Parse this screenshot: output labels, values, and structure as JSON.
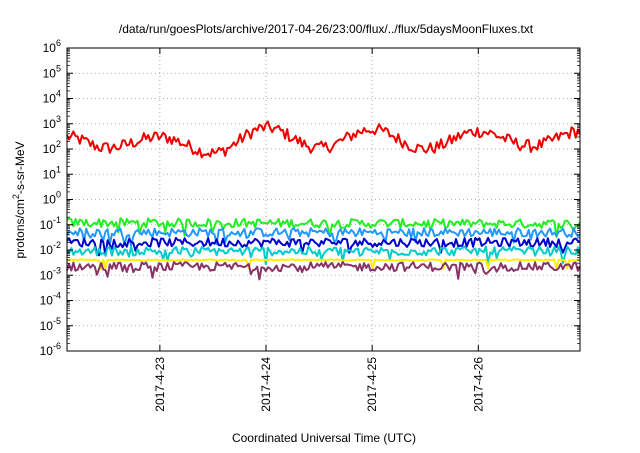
{
  "chart_data": {
    "type": "line",
    "title": "/data/run/goesPlots/archive/2017-04-26/23:00/flux/../flux/5daysMoonFluxes.txt",
    "xlabel": "Coordinated Universal Time (UTC)",
    "ylabel": {
      "base": "protons/cm",
      "sup": "2",
      "rest": "-s-sr-MeV"
    },
    "y_scale": "log",
    "ylim": [
      1e-06,
      1000000.0
    ],
    "xlim": [
      "2017-04-22 03:00",
      "2017-04-26 23:00"
    ],
    "grid": true,
    "legend": "none",
    "x_ticks": [
      "2017-4-23",
      "2017-4-24",
      "2017-4-25",
      "2017-4-26"
    ],
    "y_ticks": [
      {
        "base": "10",
        "exp": "-6"
      },
      {
        "base": "10",
        "exp": "-5"
      },
      {
        "base": "10",
        "exp": "-4"
      },
      {
        "base": "10",
        "exp": "-3"
      },
      {
        "base": "10",
        "exp": "-2"
      },
      {
        "base": "10",
        "exp": "-1"
      },
      {
        "base": "10",
        "exp": "0"
      },
      {
        "base": "10",
        "exp": "1"
      },
      {
        "base": "10",
        "exp": "2"
      },
      {
        "base": "10",
        "exp": "3"
      },
      {
        "base": "10",
        "exp": "4"
      },
      {
        "base": "10",
        "exp": "5"
      },
      {
        "base": "10",
        "exp": "6"
      }
    ],
    "series": [
      {
        "color": "#ee0000",
        "x": [
          "2017-04-22 03:00",
          "2017-04-22 12:00",
          "2017-04-23 00:00",
          "2017-04-23 12:00",
          "2017-04-24 00:00",
          "2017-04-24 12:00",
          "2017-04-25 00:00",
          "2017-04-25 12:00",
          "2017-04-26 00:00",
          "2017-04-26 12:00",
          "2017-04-26 23:00"
        ],
        "y": [
          300,
          110,
          300,
          70,
          700,
          110,
          600,
          100,
          500,
          130,
          500
        ]
      },
      {
        "color": "#22ee22",
        "x": [
          "2017-04-22 03:00",
          "2017-04-26 23:00"
        ],
        "y": [
          0.12,
          0.11
        ]
      },
      {
        "color": "#2299ff",
        "x": [
          "2017-04-22 03:00",
          "2017-04-26 23:00"
        ],
        "y": [
          0.05,
          0.05
        ]
      },
      {
        "color": "#0000cc",
        "x": [
          "2017-04-22 03:00",
          "2017-04-26 23:00"
        ],
        "y": [
          0.02,
          0.02
        ]
      },
      {
        "color": "#00cccc",
        "x": [
          "2017-04-22 03:00",
          "2017-04-26 23:00"
        ],
        "y": [
          0.009,
          0.009
        ]
      },
      {
        "color": "#ffee00",
        "x": [
          "2017-04-22 03:00",
          "2017-04-26 23:00"
        ],
        "y": [
          0.004,
          0.004
        ]
      },
      {
        "color": "#883366",
        "x": [
          "2017-04-22 03:00",
          "2017-04-26 23:00"
        ],
        "y": [
          0.0022,
          0.0022
        ]
      }
    ]
  }
}
